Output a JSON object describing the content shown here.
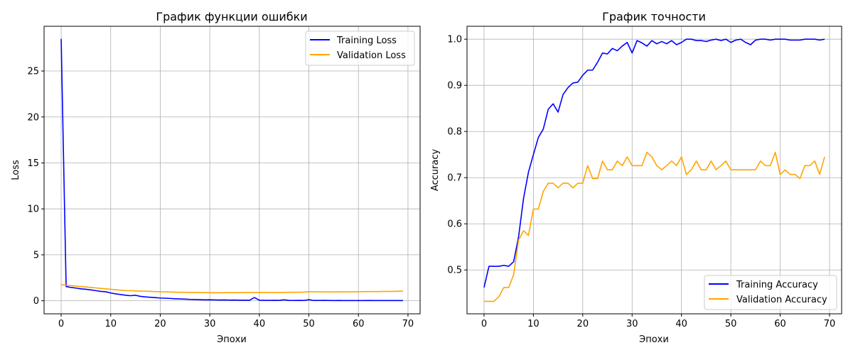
{
  "colors": {
    "training": "#0000ff",
    "validation": "#ffa500",
    "grid": "#b0b0b0"
  },
  "chart_data": [
    {
      "type": "line",
      "title": "График функции ошибки",
      "xlabel": "Эпохи",
      "ylabel": "Loss",
      "xlim": [
        -3.45,
        72.45
      ],
      "ylim": [
        -1.42,
        29.87
      ],
      "xticks": [
        0,
        10,
        20,
        30,
        40,
        50,
        60,
        70
      ],
      "yticks": [
        0,
        5,
        10,
        15,
        20,
        25
      ],
      "ytick_labels": [
        "0",
        "5",
        "10",
        "15",
        "20",
        "25"
      ],
      "grid": true,
      "legend": "top-right",
      "x": [
        0,
        1,
        2,
        3,
        4,
        5,
        6,
        7,
        8,
        9,
        10,
        11,
        12,
        13,
        14,
        15,
        16,
        17,
        18,
        19,
        20,
        21,
        22,
        23,
        24,
        25,
        26,
        27,
        28,
        29,
        30,
        31,
        32,
        33,
        34,
        35,
        36,
        37,
        38,
        39,
        40,
        41,
        42,
        43,
        44,
        45,
        46,
        47,
        48,
        49,
        50,
        51,
        52,
        53,
        54,
        55,
        56,
        57,
        58,
        59,
        60,
        61,
        62,
        63,
        64,
        65,
        66,
        67,
        68,
        69
      ],
      "series": [
        {
          "name": "Training Loss",
          "color_key": "training",
          "values": [
            28.5,
            1.55,
            1.45,
            1.38,
            1.3,
            1.25,
            1.18,
            1.1,
            1.02,
            0.98,
            0.85,
            0.75,
            0.68,
            0.6,
            0.55,
            0.6,
            0.48,
            0.42,
            0.38,
            0.34,
            0.3,
            0.28,
            0.25,
            0.22,
            0.2,
            0.18,
            0.15,
            0.14,
            0.12,
            0.1,
            0.11,
            0.09,
            0.08,
            0.09,
            0.07,
            0.08,
            0.06,
            0.06,
            0.05,
            0.35,
            0.06,
            0.05,
            0.04,
            0.05,
            0.04,
            0.1,
            0.04,
            0.03,
            0.04,
            0.03,
            0.12,
            0.03,
            0.03,
            0.04,
            0.03,
            0.02,
            0.03,
            0.02,
            0.02,
            0.02,
            0.02,
            0.02,
            0.03,
            0.02,
            0.02,
            0.02,
            0.02,
            0.02,
            0.02,
            0.02
          ]
        },
        {
          "name": "Validation Loss",
          "color_key": "validation",
          "values": [
            1.75,
            1.7,
            1.65,
            1.6,
            1.55,
            1.5,
            1.45,
            1.4,
            1.35,
            1.3,
            1.25,
            1.2,
            1.15,
            1.1,
            1.1,
            1.08,
            1.05,
            1.05,
            1.02,
            1.0,
            0.98,
            0.97,
            0.95,
            0.93,
            0.92,
            0.92,
            0.9,
            0.9,
            0.89,
            0.88,
            0.88,
            0.87,
            0.87,
            0.88,
            0.88,
            0.88,
            0.88,
            0.9,
            0.9,
            0.9,
            0.9,
            0.9,
            0.9,
            0.9,
            0.9,
            0.91,
            0.92,
            0.92,
            0.93,
            0.94,
            0.98,
            0.98,
            0.97,
            0.96,
            0.96,
            0.96,
            0.98,
            0.96,
            0.97,
            0.97,
            0.98,
            1.0,
            1.0,
            1.0,
            1.0,
            1.02,
            1.02,
            1.02,
            1.04,
            1.06
          ]
        }
      ]
    },
    {
      "type": "line",
      "title": "График точности",
      "xlabel": "Эпохи",
      "ylabel": "Accuracy",
      "xlim": [
        -3.45,
        72.45
      ],
      "ylim": [
        0.405,
        1.028
      ],
      "xticks": [
        0,
        10,
        20,
        30,
        40,
        50,
        60,
        70
      ],
      "yticks": [
        0.5,
        0.6,
        0.7,
        0.8,
        0.9,
        1.0
      ],
      "ytick_labels": [
        "0.5",
        "0.6",
        "0.7",
        "0.8",
        "0.9",
        "1.0"
      ],
      "grid": true,
      "legend": "bottom-right",
      "x": [
        0,
        1,
        2,
        3,
        4,
        5,
        6,
        7,
        8,
        9,
        10,
        11,
        12,
        13,
        14,
        15,
        16,
        17,
        18,
        19,
        20,
        21,
        22,
        23,
        24,
        25,
        26,
        27,
        28,
        29,
        30,
        31,
        32,
        33,
        34,
        35,
        36,
        37,
        38,
        39,
        40,
        41,
        42,
        43,
        44,
        45,
        46,
        47,
        48,
        49,
        50,
        51,
        52,
        53,
        54,
        55,
        56,
        57,
        58,
        59,
        60,
        61,
        62,
        63,
        64,
        65,
        66,
        67,
        68,
        69
      ],
      "series": [
        {
          "name": "Training Accuracy",
          "color_key": "training",
          "values": [
            0.462,
            0.508,
            0.508,
            0.508,
            0.51,
            0.508,
            0.518,
            0.572,
            0.655,
            0.712,
            0.75,
            0.787,
            0.805,
            0.848,
            0.86,
            0.842,
            0.88,
            0.895,
            0.905,
            0.907,
            0.922,
            0.933,
            0.933,
            0.95,
            0.97,
            0.968,
            0.98,
            0.975,
            0.985,
            0.993,
            0.97,
            0.997,
            0.992,
            0.985,
            0.997,
            0.99,
            0.995,
            0.99,
            0.997,
            0.988,
            0.993,
            1.0,
            1.0,
            0.997,
            0.997,
            0.995,
            0.998,
            1.0,
            0.997,
            1.0,
            0.993,
            0.998,
            1.0,
            0.993,
            0.988,
            0.998,
            1.0,
            1.0,
            0.998,
            1.0,
            1.0,
            1.0,
            0.998,
            0.998,
            0.998,
            1.0,
            1.0,
            1.0,
            0.998,
            1.0
          ]
        },
        {
          "name": "Validation Accuracy",
          "color_key": "validation",
          "values": [
            0.432,
            0.432,
            0.432,
            0.442,
            0.462,
            0.462,
            0.49,
            0.565,
            0.585,
            0.575,
            0.632,
            0.632,
            0.67,
            0.688,
            0.688,
            0.678,
            0.688,
            0.688,
            0.678,
            0.688,
            0.688,
            0.726,
            0.698,
            0.698,
            0.736,
            0.717,
            0.717,
            0.736,
            0.726,
            0.745,
            0.726,
            0.726,
            0.726,
            0.755,
            0.745,
            0.726,
            0.717,
            0.726,
            0.736,
            0.726,
            0.745,
            0.707,
            0.717,
            0.736,
            0.717,
            0.717,
            0.736,
            0.717,
            0.726,
            0.736,
            0.717,
            0.717,
            0.717,
            0.717,
            0.717,
            0.717,
            0.736,
            0.726,
            0.726,
            0.755,
            0.707,
            0.717,
            0.707,
            0.707,
            0.698,
            0.726,
            0.726,
            0.736,
            0.707,
            0.745
          ]
        }
      ]
    }
  ]
}
